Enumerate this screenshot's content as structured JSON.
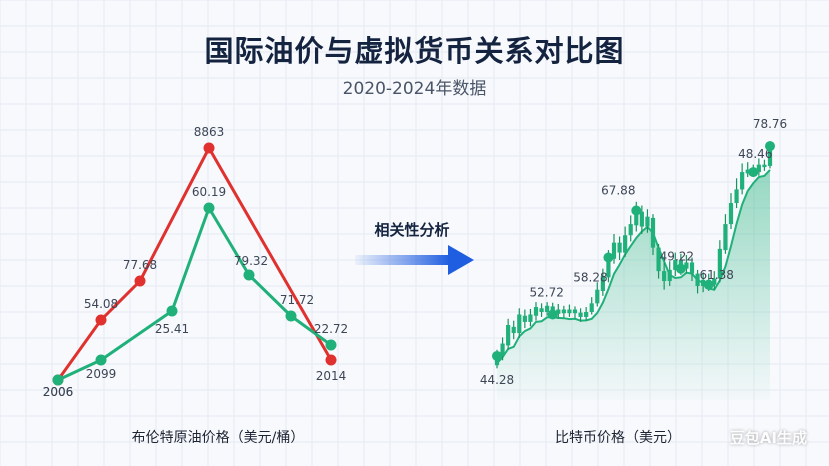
{
  "title": "国际油价与虚拟货币关系对比图",
  "subtitle": "2020-2024年数据",
  "arrow_label": "相关性分析",
  "watermark": "豆包AI生成",
  "colors": {
    "red": "#e0312f",
    "green": "#20b07a",
    "arrow": "#1f5ee0",
    "title": "#14233f"
  },
  "chart_data": [
    {
      "type": "line",
      "xlabel": "布伦特原油价格（美元/桶）",
      "series": [
        {
          "color": "#e0312f",
          "values": [
            2006,
            54.08,
            77.68,
            null,
            8863,
            null,
            null,
            2014
          ],
          "labels": [
            "2006",
            "54.08",
            "77.68",
            "",
            "8863",
            "",
            "",
            "2014"
          ]
        },
        {
          "color": "#20b07a",
          "values": [
            2006,
            2099,
            null,
            25.41,
            60.19,
            79.32,
            71.72,
            22.72
          ],
          "labels": [
            "2006",
            "2099",
            "",
            "25.41",
            "60.19",
            "79.32",
            "71.72",
            "22.72"
          ]
        }
      ]
    },
    {
      "type": "candlestick",
      "xlabel": "比特币价格（美元）",
      "point_labels": [
        "44.28",
        "52.72",
        "58.28",
        "67.88",
        "49.22",
        "61.38",
        "48.46",
        "78.76"
      ],
      "candles": [
        {
          "o": 44,
          "c": 45.5,
          "h": 46.5,
          "l": 43.5
        },
        {
          "o": 45.5,
          "c": 47.5,
          "h": 48.5,
          "l": 44.8
        },
        {
          "o": 47.2,
          "c": 50.5,
          "h": 51.5,
          "l": 46.5
        },
        {
          "o": 50.2,
          "c": 49.2,
          "h": 51.2,
          "l": 48.2
        },
        {
          "o": 49.2,
          "c": 52.2,
          "h": 53.2,
          "l": 48.4
        },
        {
          "o": 52.0,
          "c": 51.0,
          "h": 53.0,
          "l": 50.0
        },
        {
          "o": 51.0,
          "c": 52.2,
          "h": 53.1,
          "l": 50.3
        },
        {
          "o": 52.0,
          "c": 53.4,
          "h": 54.2,
          "l": 51.2
        },
        {
          "o": 53.2,
          "c": 52.6,
          "h": 54.0,
          "l": 51.8
        },
        {
          "o": 52.6,
          "c": 53.6,
          "h": 54.2,
          "l": 52.0
        },
        {
          "o": 53.5,
          "c": 52.2,
          "h": 54.1,
          "l": 51.6
        },
        {
          "o": 52.3,
          "c": 53.0,
          "h": 53.9,
          "l": 51.5
        },
        {
          "o": 53.0,
          "c": 52.4,
          "h": 53.6,
          "l": 51.7
        },
        {
          "o": 52.4,
          "c": 53.0,
          "h": 53.8,
          "l": 51.8
        },
        {
          "o": 53.0,
          "c": 52.4,
          "h": 53.5,
          "l": 51.6
        },
        {
          "o": 52.5,
          "c": 51.8,
          "h": 53.2,
          "l": 51.0
        },
        {
          "o": 51.8,
          "c": 52.6,
          "h": 53.4,
          "l": 51.2
        },
        {
          "o": 52.6,
          "c": 54.0,
          "h": 55.0,
          "l": 52.2
        },
        {
          "o": 54.0,
          "c": 56.2,
          "h": 57.4,
          "l": 53.5
        },
        {
          "o": 56.0,
          "c": 58.4,
          "h": 59.6,
          "l": 55.2
        },
        {
          "o": 58.2,
          "c": 61.4,
          "h": 62.6,
          "l": 57.4
        },
        {
          "o": 61.2,
          "c": 63.8,
          "h": 65.2,
          "l": 60.4
        },
        {
          "o": 63.8,
          "c": 62.2,
          "h": 64.8,
          "l": 61.0
        },
        {
          "o": 62.2,
          "c": 65.0,
          "h": 66.4,
          "l": 61.5
        },
        {
          "o": 65.0,
          "c": 66.8,
          "h": 68.2,
          "l": 64.0
        },
        {
          "o": 66.6,
          "c": 69.0,
          "h": 70.4,
          "l": 65.6
        },
        {
          "o": 68.8,
          "c": 66.4,
          "h": 69.8,
          "l": 65.2
        },
        {
          "o": 66.4,
          "c": 68.0,
          "h": 69.2,
          "l": 65.4
        },
        {
          "o": 67.8,
          "c": 63.0,
          "h": 68.4,
          "l": 61.8
        },
        {
          "o": 63.0,
          "c": 59.2,
          "h": 63.6,
          "l": 58.0
        },
        {
          "o": 59.2,
          "c": 57.6,
          "h": 60.6,
          "l": 56.2
        },
        {
          "o": 57.6,
          "c": 59.4,
          "h": 60.8,
          "l": 56.8
        },
        {
          "o": 59.4,
          "c": 61.0,
          "h": 62.2,
          "l": 58.4
        },
        {
          "o": 61.0,
          "c": 59.6,
          "h": 62.0,
          "l": 58.6
        },
        {
          "o": 59.6,
          "c": 60.6,
          "h": 61.8,
          "l": 58.8
        },
        {
          "o": 60.6,
          "c": 58.8,
          "h": 61.4,
          "l": 57.6
        },
        {
          "o": 58.8,
          "c": 56.8,
          "h": 59.4,
          "l": 55.6
        },
        {
          "o": 56.8,
          "c": 57.8,
          "h": 59.0,
          "l": 55.8
        },
        {
          "o": 57.8,
          "c": 57.0,
          "h": 58.8,
          "l": 56.0
        },
        {
          "o": 57.0,
          "c": 58.0,
          "h": 59.2,
          "l": 56.2
        },
        {
          "o": 58.0,
          "c": 62.8,
          "h": 64.2,
          "l": 57.4
        },
        {
          "o": 62.6,
          "c": 66.8,
          "h": 68.4,
          "l": 62.0
        },
        {
          "o": 66.8,
          "c": 70.2,
          "h": 71.8,
          "l": 66.0
        },
        {
          "o": 70.2,
          "c": 72.4,
          "h": 74.2,
          "l": 69.4
        },
        {
          "o": 72.4,
          "c": 75.2,
          "h": 76.6,
          "l": 71.6
        },
        {
          "o": 75.0,
          "c": 75.6,
          "h": 76.8,
          "l": 74.4
        },
        {
          "o": 75.6,
          "c": 75.2,
          "h": 76.4,
          "l": 74.8
        },
        {
          "o": 75.2,
          "c": 76.4,
          "h": 77.4,
          "l": 74.6
        },
        {
          "o": 76.4,
          "c": 76.0,
          "h": 77.2,
          "l": 75.4
        },
        {
          "o": 76.2,
          "c": 79.4,
          "h": 80.2,
          "l": 75.8
        }
      ]
    }
  ]
}
